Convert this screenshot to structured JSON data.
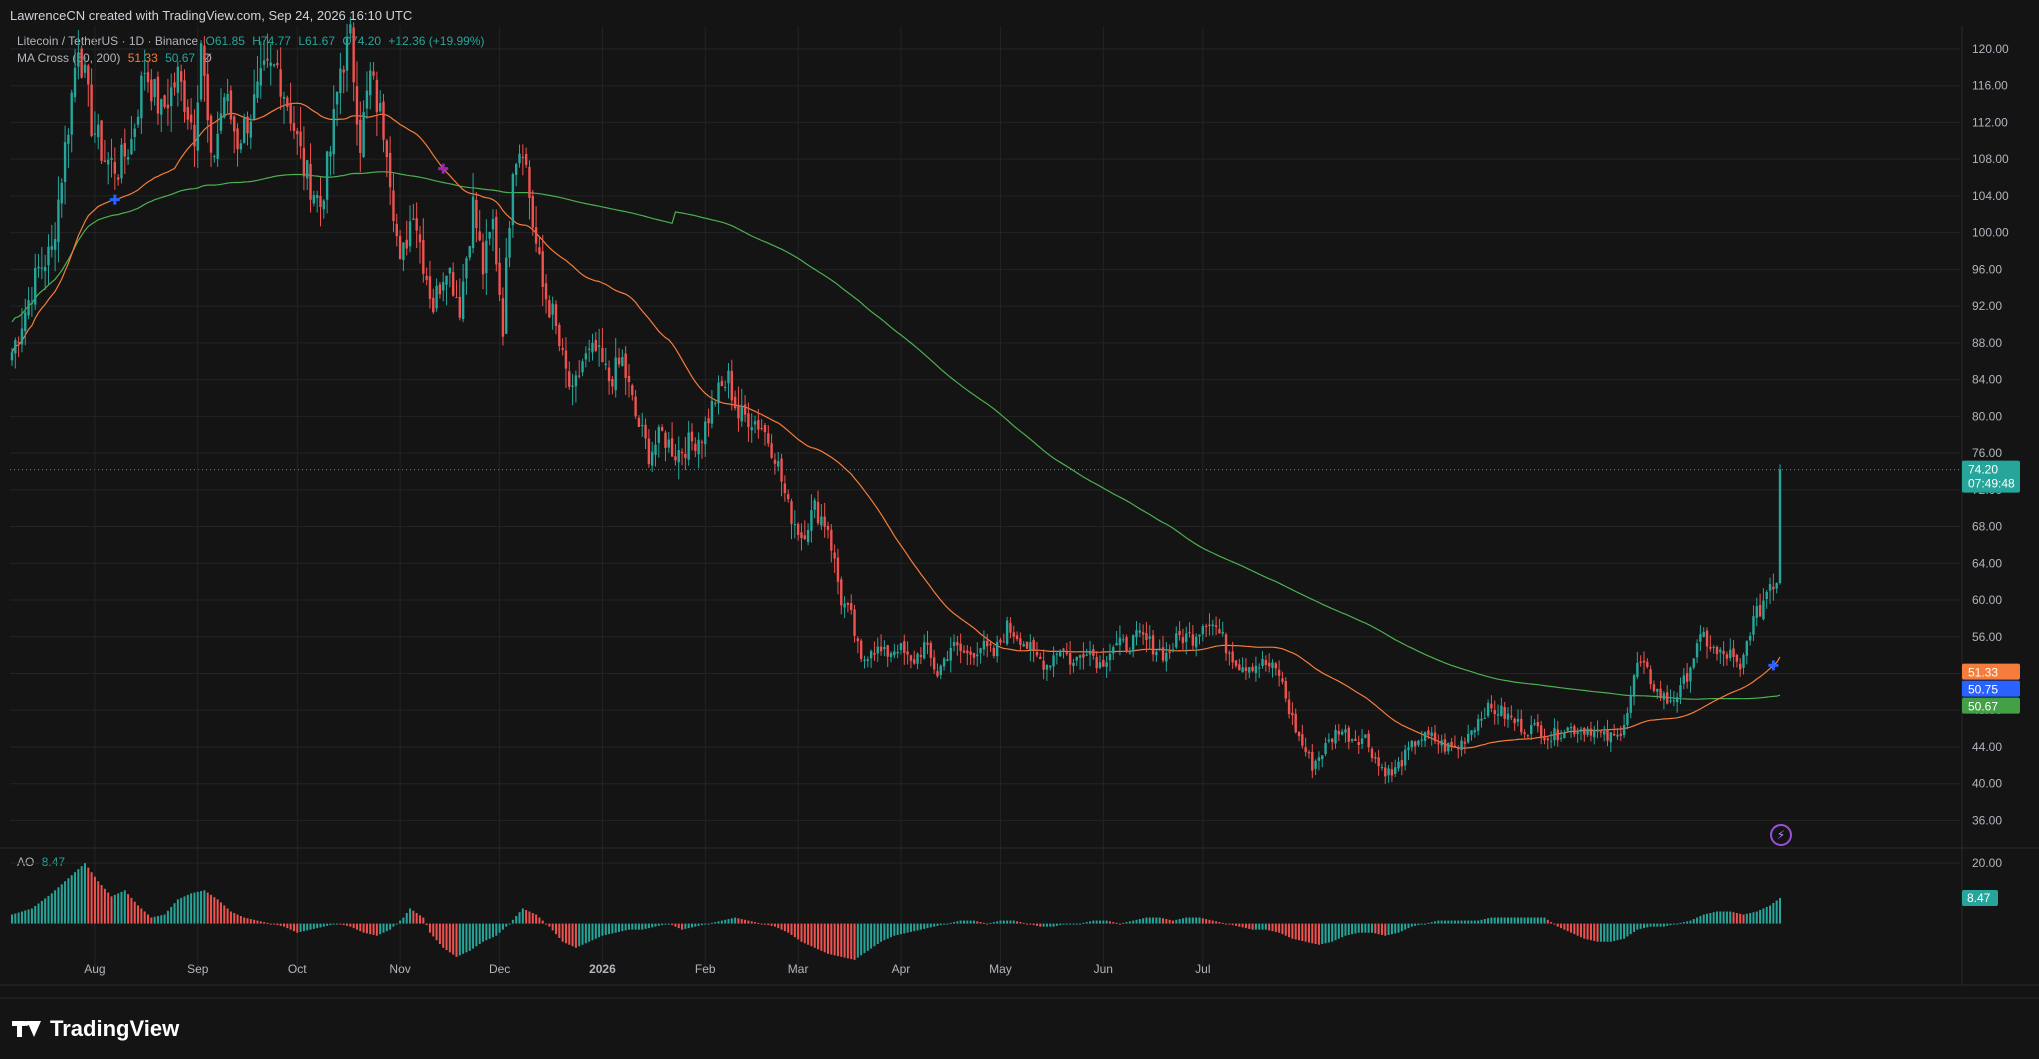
{
  "header": {
    "credit": "LawrenceCN created with TradingView.com, Sep 24, 2026 16:10 UTC"
  },
  "legend": {
    "symbol": "Litecoin / TetherUS · 1D · Binance",
    "open": "O61.85",
    "high": "H74.77",
    "low": "L61.67",
    "close": "C74.20",
    "change": "+12.36 (+19.99%)",
    "ma_name": "MA Cross (50, 200)",
    "ma_fast": "51.33",
    "ma_slow": "50.67",
    "ma_extra": "Ø",
    "ao_name": "AO",
    "ao_value": "8.47"
  },
  "brand": {
    "name": "TradingView"
  },
  "colors": {
    "background": "#141414",
    "up": "#26a69a",
    "down": "#ef5350",
    "ma_fast": "#f57c3a",
    "ma_slow": "#4caf50",
    "cross_marker": "#2962ff",
    "grid": "#232323"
  },
  "chart_data": {
    "type": "candlestick",
    "symbol": "LTC/USDT",
    "timeframe": "1D",
    "exchange": "Binance",
    "y_ticks": [
      120,
      116,
      112,
      108,
      104,
      100,
      96,
      92,
      88,
      84,
      80,
      76,
      72,
      68,
      64,
      60,
      56,
      52,
      48,
      44,
      40,
      36
    ],
    "ylim": [
      33,
      122.5
    ],
    "x_ticks": [
      "Aug",
      "Sep",
      "Oct",
      "Nov",
      "Dec",
      "2026",
      "Feb",
      "Mar",
      "Apr",
      "May",
      "Jun",
      "Jul"
    ],
    "price_labels": {
      "last": "74.20",
      "countdown": "07:49:48",
      "ma_fast": "51.33",
      "ma_mid": "50.75",
      "ma_slow": "50.67"
    },
    "close_anchors": [
      [
        0,
        87
      ],
      [
        8,
        96
      ],
      [
        12,
        98
      ],
      [
        17,
        112
      ],
      [
        20,
        121
      ],
      [
        24,
        112
      ],
      [
        28,
        108
      ],
      [
        32,
        107
      ],
      [
        36,
        110
      ],
      [
        40,
        118
      ],
      [
        45,
        113
      ],
      [
        50,
        117
      ],
      [
        55,
        111
      ],
      [
        57,
        121
      ],
      [
        60,
        107
      ],
      [
        64,
        115
      ],
      [
        68,
        110
      ],
      [
        72,
        113
      ],
      [
        76,
        117
      ],
      [
        80,
        118
      ],
      [
        84,
        113
      ],
      [
        88,
        107
      ],
      [
        93,
        103
      ],
      [
        96,
        109
      ],
      [
        99,
        118
      ],
      [
        102,
        121
      ],
      [
        105,
        110
      ],
      [
        108,
        117
      ],
      [
        113,
        110
      ],
      [
        117,
        96
      ],
      [
        121,
        103
      ],
      [
        124,
        97
      ],
      [
        127,
        92
      ],
      [
        131,
        97
      ],
      [
        135,
        92
      ],
      [
        139,
        103
      ],
      [
        142,
        96
      ],
      [
        145,
        101
      ],
      [
        148,
        90
      ],
      [
        151,
        108
      ],
      [
        154,
        110
      ],
      [
        157,
        101
      ],
      [
        160,
        94
      ],
      [
        163,
        91
      ],
      [
        166,
        86
      ],
      [
        169,
        82
      ],
      [
        172,
        86
      ],
      [
        176,
        87
      ],
      [
        180,
        84
      ],
      [
        184,
        86
      ],
      [
        188,
        80
      ],
      [
        192,
        76
      ],
      [
        196,
        78
      ],
      [
        200,
        76
      ],
      [
        204,
        77
      ],
      [
        208,
        78
      ],
      [
        212,
        82
      ],
      [
        216,
        84
      ],
      [
        219,
        80
      ],
      [
        222,
        80
      ],
      [
        226,
        79
      ],
      [
        230,
        76
      ],
      [
        234,
        70
      ],
      [
        238,
        67
      ],
      [
        242,
        70
      ],
      [
        246,
        68
      ],
      [
        250,
        60
      ],
      [
        253,
        58
      ],
      [
        256,
        53
      ],
      [
        259,
        55
      ],
      [
        263,
        54
      ],
      [
        267,
        55
      ],
      [
        271,
        53
      ],
      [
        275,
        55
      ],
      [
        279,
        52
      ],
      [
        283,
        55
      ],
      [
        288,
        54
      ],
      [
        292,
        55
      ],
      [
        296,
        54
      ],
      [
        300,
        57
      ],
      [
        304,
        56
      ],
      [
        308,
        54
      ],
      [
        312,
        53
      ],
      [
        316,
        55
      ],
      [
        320,
        53
      ],
      [
        324,
        55
      ],
      [
        328,
        53
      ],
      [
        332,
        55
      ],
      [
        336,
        55
      ],
      [
        340,
        56
      ],
      [
        344,
        55
      ],
      [
        348,
        54
      ],
      [
        352,
        56
      ],
      [
        356,
        56
      ],
      [
        360,
        58
      ],
      [
        363,
        57
      ],
      [
        366,
        55
      ],
      [
        370,
        53
      ],
      [
        374,
        53
      ],
      [
        378,
        53
      ],
      [
        382,
        52
      ],
      [
        385,
        48
      ],
      [
        388,
        45
      ],
      [
        392,
        42
      ],
      [
        396,
        44
      ],
      [
        400,
        46
      ],
      [
        404,
        45
      ],
      [
        408,
        45
      ],
      [
        412,
        42
      ],
      [
        416,
        41
      ],
      [
        420,
        43
      ],
      [
        424,
        45
      ],
      [
        428,
        45
      ],
      [
        432,
        44
      ],
      [
        436,
        44
      ],
      [
        440,
        46
      ],
      [
        444,
        48
      ],
      [
        448,
        48
      ],
      [
        452,
        47
      ],
      [
        456,
        46
      ],
      [
        460,
        46
      ],
      [
        464,
        45
      ],
      [
        468,
        46
      ],
      [
        472,
        46
      ],
      [
        476,
        46
      ],
      [
        480,
        45
      ],
      [
        484,
        45
      ],
      [
        487,
        48
      ],
      [
        490,
        53
      ],
      [
        493,
        52
      ],
      [
        496,
        50
      ],
      [
        499,
        49
      ],
      [
        503,
        50
      ],
      [
        507,
        54
      ],
      [
        510,
        56
      ],
      [
        514,
        54
      ],
      [
        518,
        54
      ],
      [
        521,
        52
      ],
      [
        524,
        57
      ],
      [
        527,
        59
      ],
      [
        530,
        62
      ],
      [
        532,
        61.85
      ],
      [
        533,
        74.2
      ]
    ],
    "ao_anchors": [
      [
        0,
        3
      ],
      [
        6,
        5
      ],
      [
        12,
        10
      ],
      [
        18,
        16
      ],
      [
        22,
        20
      ],
      [
        26,
        14
      ],
      [
        30,
        9
      ],
      [
        34,
        11
      ],
      [
        38,
        6
      ],
      [
        42,
        2
      ],
      [
        46,
        3
      ],
      [
        50,
        8
      ],
      [
        54,
        10
      ],
      [
        58,
        11
      ],
      [
        62,
        8
      ],
      [
        66,
        4
      ],
      [
        70,
        2
      ],
      [
        74,
        1
      ],
      [
        78,
        0
      ],
      [
        82,
        -1
      ],
      [
        86,
        -3
      ],
      [
        90,
        -2
      ],
      [
        94,
        -1
      ],
      [
        98,
        0
      ],
      [
        102,
        -1
      ],
      [
        106,
        -3
      ],
      [
        110,
        -4
      ],
      [
        114,
        -2
      ],
      [
        118,
        2
      ],
      [
        120,
        5
      ],
      [
        124,
        2
      ],
      [
        126,
        -3
      ],
      [
        130,
        -8
      ],
      [
        134,
        -11
      ],
      [
        138,
        -9
      ],
      [
        142,
        -6
      ],
      [
        146,
        -4
      ],
      [
        150,
        0
      ],
      [
        154,
        5
      ],
      [
        158,
        3
      ],
      [
        162,
        -1
      ],
      [
        166,
        -6
      ],
      [
        170,
        -8
      ],
      [
        174,
        -6
      ],
      [
        178,
        -4
      ],
      [
        182,
        -3
      ],
      [
        186,
        -2
      ],
      [
        190,
        -2
      ],
      [
        194,
        -1
      ],
      [
        198,
        0
      ],
      [
        202,
        -2
      ],
      [
        206,
        -1
      ],
      [
        210,
        0
      ],
      [
        214,
        1
      ],
      [
        218,
        2
      ],
      [
        222,
        1
      ],
      [
        226,
        0
      ],
      [
        230,
        -1
      ],
      [
        234,
        -3
      ],
      [
        238,
        -6
      ],
      [
        242,
        -8
      ],
      [
        246,
        -10
      ],
      [
        250,
        -11
      ],
      [
        254,
        -12
      ],
      [
        258,
        -9
      ],
      [
        262,
        -6
      ],
      [
        266,
        -4
      ],
      [
        270,
        -3
      ],
      [
        274,
        -2
      ],
      [
        278,
        -1
      ],
      [
        282,
        0
      ],
      [
        286,
        1
      ],
      [
        290,
        1
      ],
      [
        294,
        0
      ],
      [
        298,
        1
      ],
      [
        302,
        1
      ],
      [
        306,
        0
      ],
      [
        310,
        -1
      ],
      [
        314,
        -1
      ],
      [
        318,
        0
      ],
      [
        322,
        0
      ],
      [
        326,
        1
      ],
      [
        330,
        1
      ],
      [
        334,
        0
      ],
      [
        338,
        1
      ],
      [
        342,
        2
      ],
      [
        346,
        2
      ],
      [
        350,
        1
      ],
      [
        354,
        2
      ],
      [
        358,
        2
      ],
      [
        362,
        1
      ],
      [
        366,
        0
      ],
      [
        370,
        -1
      ],
      [
        374,
        -2
      ],
      [
        378,
        -2
      ],
      [
        382,
        -3
      ],
      [
        386,
        -5
      ],
      [
        390,
        -6
      ],
      [
        394,
        -7
      ],
      [
        398,
        -6
      ],
      [
        402,
        -4
      ],
      [
        406,
        -3
      ],
      [
        410,
        -3
      ],
      [
        414,
        -4
      ],
      [
        418,
        -3
      ],
      [
        422,
        -1
      ],
      [
        426,
        0
      ],
      [
        430,
        1
      ],
      [
        434,
        1
      ],
      [
        438,
        1
      ],
      [
        442,
        1
      ],
      [
        446,
        2
      ],
      [
        450,
        2
      ],
      [
        454,
        2
      ],
      [
        458,
        2
      ],
      [
        462,
        2
      ],
      [
        466,
        -1
      ],
      [
        470,
        -3
      ],
      [
        474,
        -5
      ],
      [
        478,
        -6
      ],
      [
        482,
        -6
      ],
      [
        486,
        -5
      ],
      [
        490,
        -2
      ],
      [
        494,
        -1
      ],
      [
        498,
        -1
      ],
      [
        502,
        0
      ],
      [
        506,
        1
      ],
      [
        510,
        3
      ],
      [
        514,
        4
      ],
      [
        518,
        4
      ],
      [
        522,
        3
      ],
      [
        526,
        4
      ],
      [
        530,
        6
      ],
      [
        533,
        8.47
      ]
    ],
    "ao_ticks": [
      20
    ],
    "ao_ylim": [
      -17,
      25
    ],
    "cross_markers": [
      {
        "bar": 31,
        "type": "golden"
      },
      {
        "bar": 130,
        "type": "death"
      },
      {
        "bar": 531,
        "type": "golden"
      }
    ]
  }
}
